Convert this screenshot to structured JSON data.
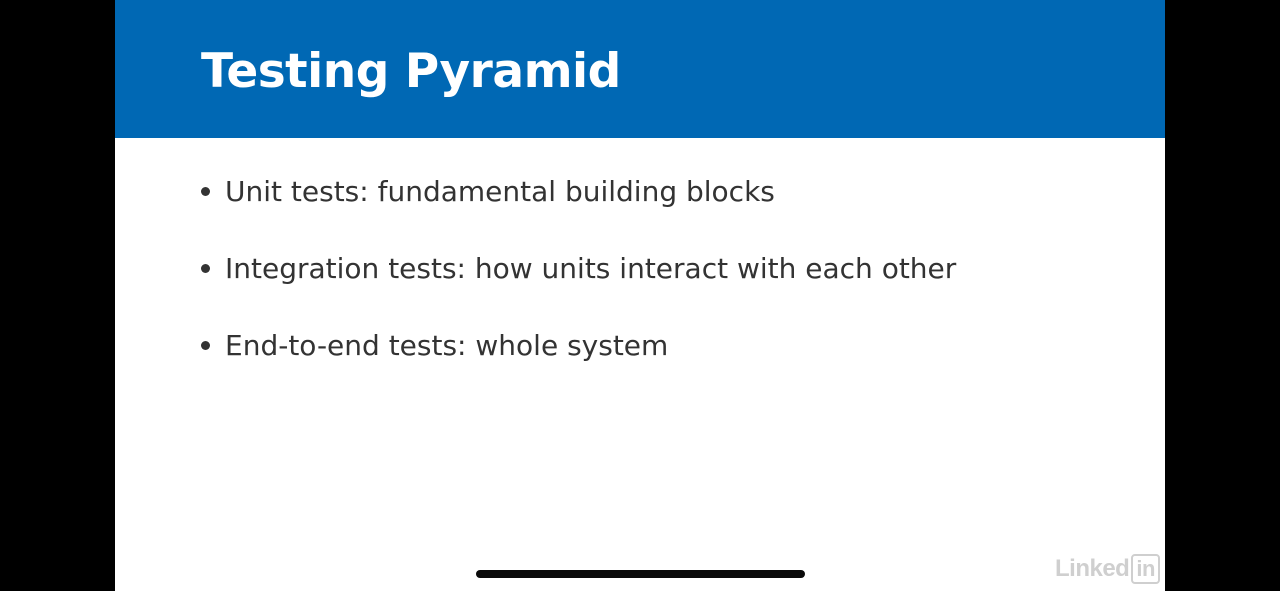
{
  "slide": {
    "title": "Testing Pyramid",
    "header_color": "#0068b4",
    "bullets": [
      {
        "text": "Unit tests: fundamental building blocks"
      },
      {
        "text": "Integration tests: how units interact with each other"
      },
      {
        "text": "End-to-end tests: whole system"
      }
    ]
  },
  "watermark": {
    "brand_prefix": "Linked",
    "brand_suffix": "in"
  },
  "colors": {
    "background": "#000000",
    "slide_background": "#ffffff",
    "text": "#333333"
  }
}
